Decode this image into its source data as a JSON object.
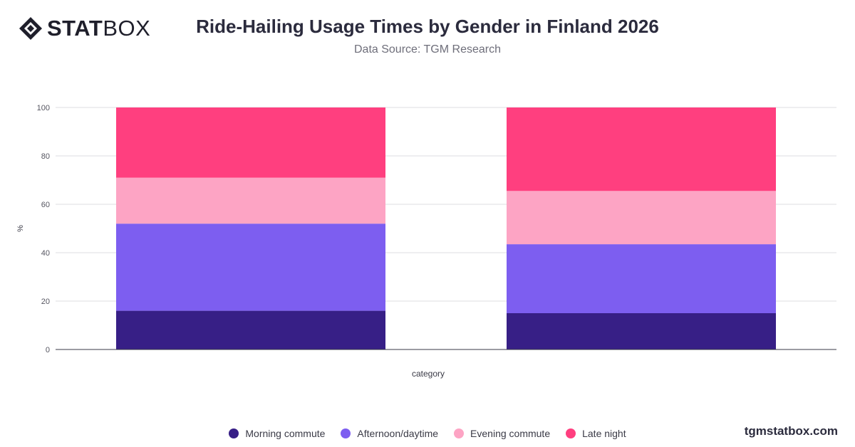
{
  "header": {
    "logo_bold": "STAT",
    "logo_light": "BOX",
    "logo_icon": "statbox-diamond-icon",
    "title": "Ride-Hailing Usage Times by Gender in Finland 2026",
    "subtitle": "Data Source: TGM Research"
  },
  "footer": {
    "site": "tgmstatbox.com"
  },
  "chart_data": {
    "type": "bar",
    "stacked": true,
    "categories": [
      "",
      ""
    ],
    "xlabel": "category",
    "ylabel": "%",
    "ylim": [
      0,
      100
    ],
    "yticks": [
      0,
      20,
      40,
      60,
      80,
      100
    ],
    "grid": true,
    "legend_position": "bottom",
    "series": [
      {
        "name": "Morning commute",
        "color": "#371f86",
        "values": [
          16,
          15
        ]
      },
      {
        "name": "Afternoon/daytime",
        "color": "#7d5ef0",
        "values": [
          36,
          28.5
        ]
      },
      {
        "name": "Evening commute",
        "color": "#fda4c4",
        "values": [
          19,
          22
        ]
      },
      {
        "name": "Late night",
        "color": "#ff3f7f",
        "values": [
          29,
          34.5
        ]
      }
    ]
  }
}
